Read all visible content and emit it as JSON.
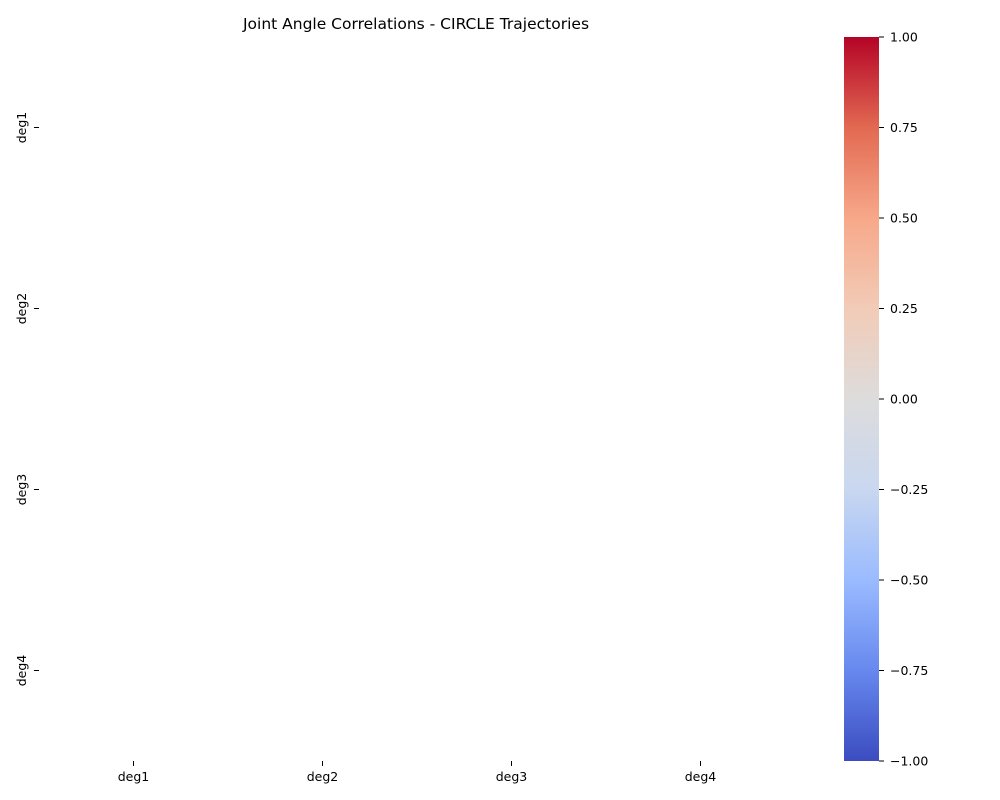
{
  "chart_data": {
    "type": "heatmap",
    "title": "Joint Angle Correlations - CIRCLE Trajectories",
    "xlabel": "",
    "ylabel": "",
    "x_categories": [
      "deg1",
      "deg2",
      "deg3",
      "deg4"
    ],
    "y_categories": [
      "deg1",
      "deg2",
      "deg3",
      "deg4"
    ],
    "values": [
      [
        null,
        null,
        null,
        null
      ],
      [
        null,
        null,
        null,
        null
      ],
      [
        null,
        null,
        null,
        null
      ],
      [
        null,
        null,
        null,
        null
      ]
    ],
    "colorbar": {
      "colormap": "coolwarm",
      "range": [
        -1.0,
        1.0
      ],
      "tick_values": [
        1.0,
        0.75,
        0.5,
        0.25,
        0.0,
        -0.25,
        -0.5,
        -0.75,
        -1.0
      ],
      "tick_labels": [
        "1.00",
        "0.75",
        "0.50",
        "0.25",
        "0.00",
        "−0.25",
        "−0.50",
        "−0.75",
        "−1.00"
      ],
      "colors": [
        "#3b4cc0",
        "#6788ee",
        "#9abbff",
        "#c9d7f0",
        "#dddcdc",
        "#f2cbb7",
        "#f7a889",
        "#e26952",
        "#b40426"
      ]
    },
    "grid": false
  }
}
